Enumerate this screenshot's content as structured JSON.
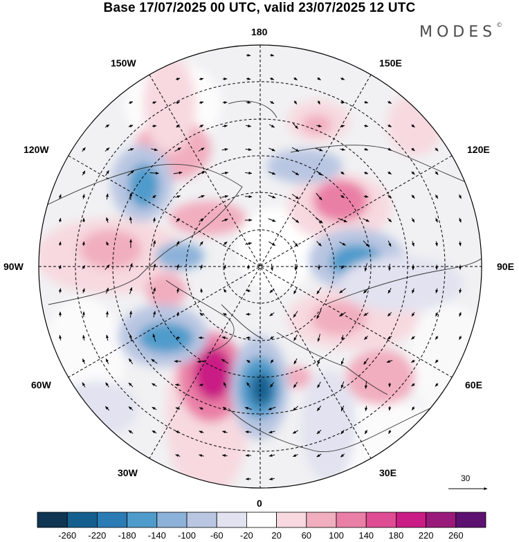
{
  "title": "Base 17/07/2025 00 UTC, valid 23/07/2025 12 UTC",
  "brand": "MODES",
  "brand_mark": "©",
  "longitude_labels": {
    "top": "180",
    "bottom": "0",
    "left": "90W",
    "right": "90E",
    "upper_left_1": "150W",
    "upper_left_2": "120W",
    "upper_right_1": "150E",
    "upper_right_2": "120E",
    "lower_left_1": "60W",
    "lower_left_2": "30W",
    "lower_right_1": "60E",
    "lower_right_2": "30E"
  },
  "reference_vector": {
    "value": "30"
  },
  "colorbar": {
    "labels": [
      "-260",
      "-220",
      "-180",
      "-140",
      "-100",
      "-60",
      "-20",
      "20",
      "60",
      "100",
      "140",
      "180",
      "220",
      "260"
    ],
    "colors": [
      "#0f3552",
      "#155f8f",
      "#2b7bb5",
      "#4f9bcb",
      "#8db2d9",
      "#b9c6e2",
      "#e2e2f0",
      "#ffffff",
      "#f7d9df",
      "#f1aebf",
      "#ea7fa6",
      "#e04c93",
      "#c91c84",
      "#991a7a",
      "#5d1170"
    ]
  },
  "colors": {
    "background": "#ffffff",
    "grid": "#000000",
    "coast": "#333333"
  }
}
